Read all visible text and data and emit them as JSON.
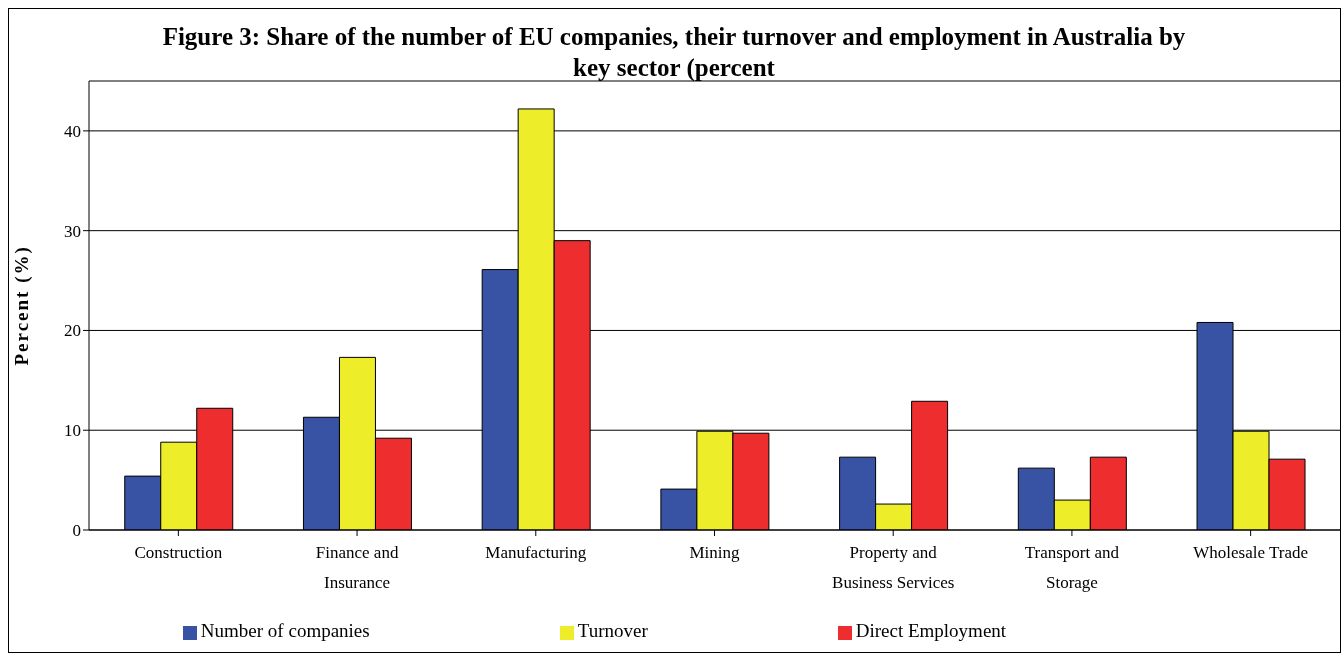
{
  "chart_data": {
    "type": "bar",
    "title": "Figure 3: Share of the number of EU companies, their turnover and employment in Australia by key sector (percent",
    "ylabel": "Percent (%)",
    "categories": [
      "Construction",
      "Finance and Insurance",
      "Manufacturing",
      "Mining",
      "Property and Business Services",
      "Transport and Storage",
      "Wholesale Trade"
    ],
    "series": [
      {
        "name": "Number of companies",
        "color": "#3953a4",
        "values": [
          5.4,
          11.3,
          26.1,
          4.1,
          7.3,
          6.2,
          20.8
        ]
      },
      {
        "name": "Turnover",
        "color": "#eded2a",
        "values": [
          8.8,
          17.3,
          42.2,
          9.9,
          2.6,
          3.0,
          9.9
        ]
      },
      {
        "name": "Direct Employment",
        "color": "#ee2e2e",
        "values": [
          12.2,
          9.2,
          29.0,
          9.7,
          12.9,
          7.3,
          7.1
        ]
      }
    ],
    "ylim": [
      0,
      45
    ],
    "yticks": [
      0,
      10,
      20,
      30,
      40
    ],
    "grid": "y",
    "legend": "bottom"
  }
}
